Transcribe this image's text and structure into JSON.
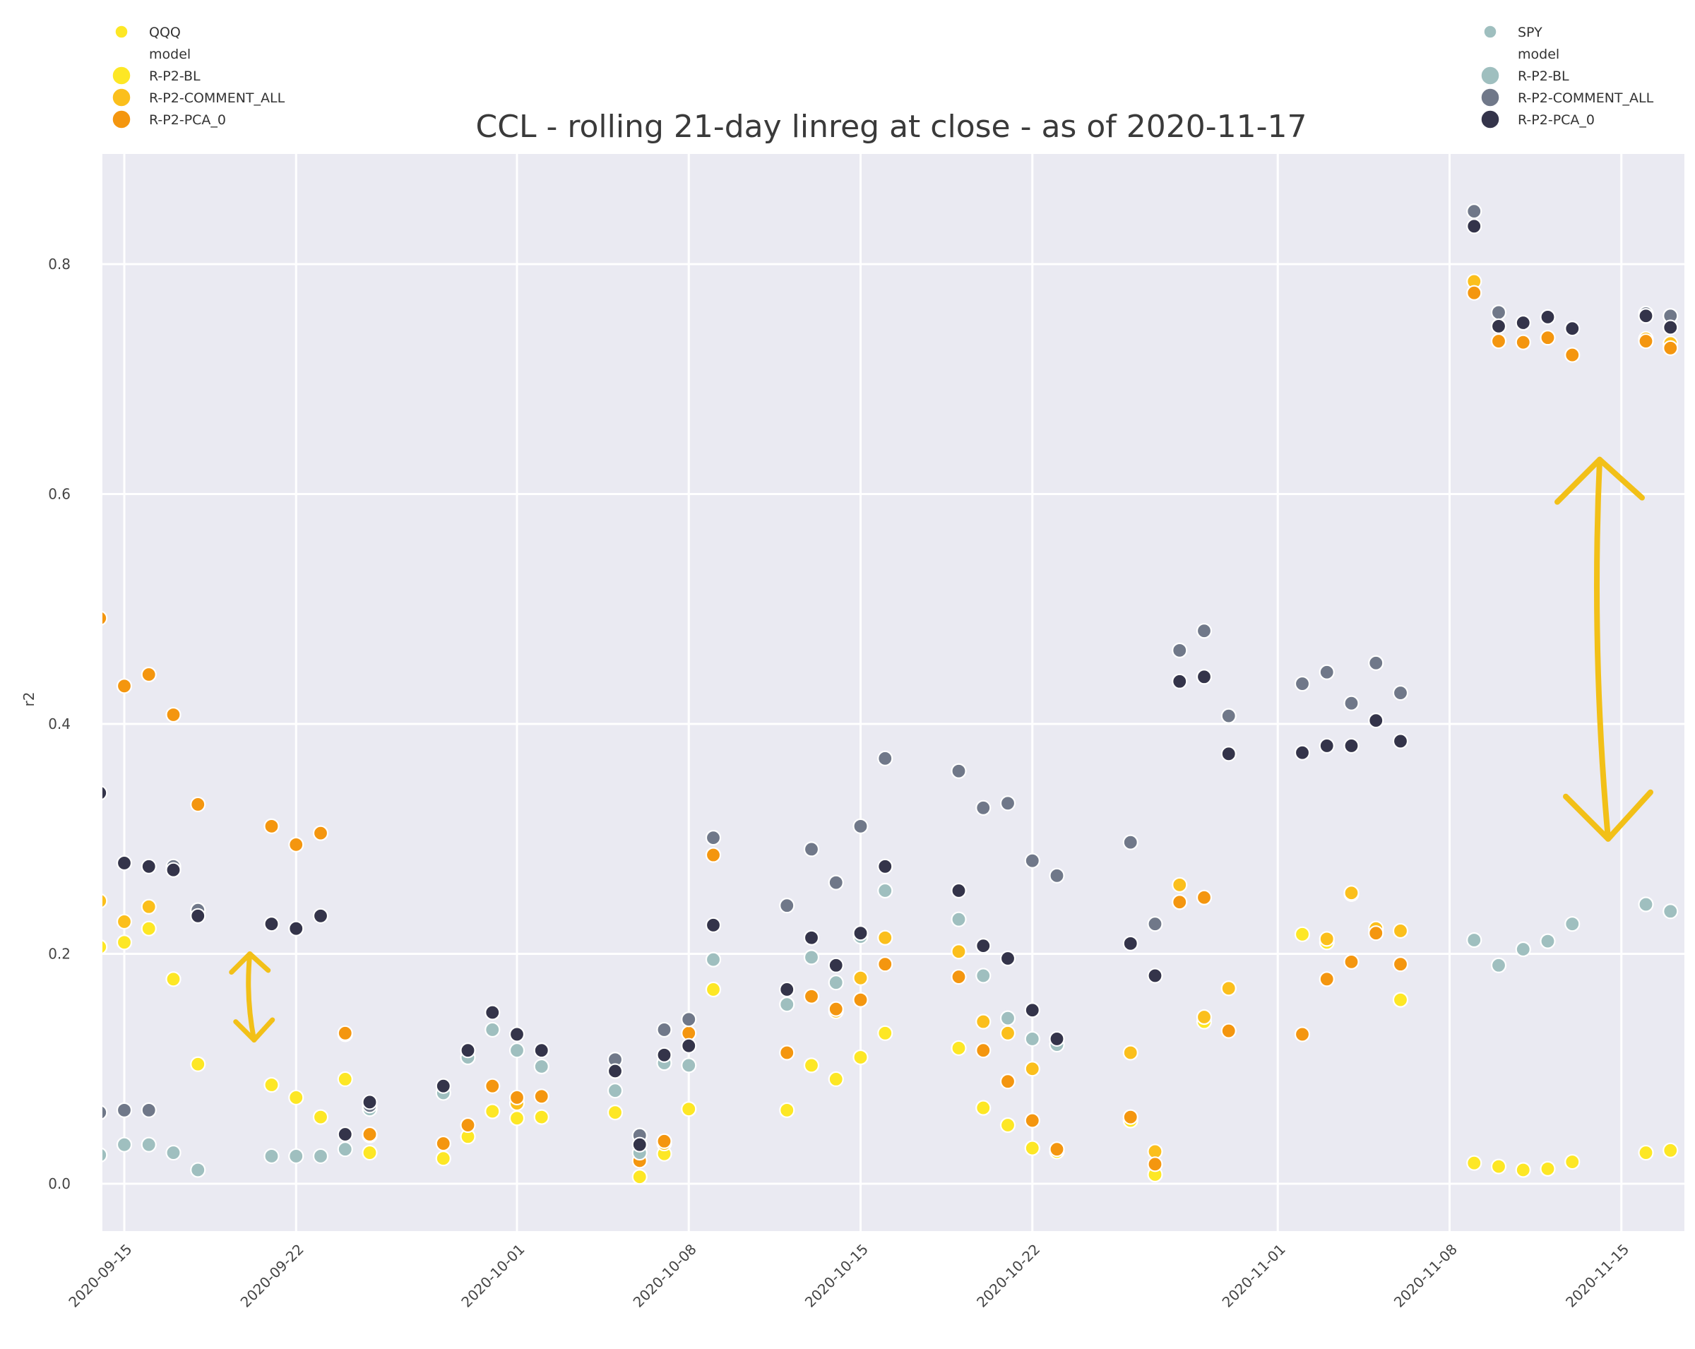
{
  "chart_data": {
    "type": "scatter",
    "title": "CCL - rolling 21-day linreg at close - as of 2020-11-17",
    "xlabel": "",
    "ylabel": "r2",
    "xlim": [
      "2020-09-14",
      "2020-11-17"
    ],
    "ylim": [
      -0.045,
      0.895
    ],
    "yticks": [
      0.0,
      0.2,
      0.4,
      0.6,
      0.8
    ],
    "ytick_labels": [
      "0.0",
      "0.2",
      "0.4",
      "0.6",
      "0.8"
    ],
    "xticks": [
      "2020-09-15",
      "2020-09-22",
      "2020-10-01",
      "2020-10-08",
      "2020-10-15",
      "2020-10-22",
      "2020-11-01",
      "2020-11-08",
      "2020-11-15"
    ],
    "grid": true,
    "legends": [
      {
        "position": "top-left",
        "title_entry": {
          "label": "QQQ",
          "color": "#fde725"
        },
        "subtitle": "model",
        "entries": [
          {
            "label": "R-P2-BL",
            "color": "#fde725"
          },
          {
            "label": "R-P2-COMMENT_ALL",
            "color": "#fbbf1c"
          },
          {
            "label": "R-P2-PCA_0",
            "color": "#f4960f"
          }
        ]
      },
      {
        "position": "top-right",
        "title_entry": {
          "label": "SPY",
          "color": "#9fbfbf"
        },
        "subtitle": "model",
        "entries": [
          {
            "label": "R-P2-BL",
            "color": "#9fbfbf"
          },
          {
            "label": "R-P2-COMMENT_ALL",
            "color": "#707889"
          },
          {
            "label": "R-P2-PCA_0",
            "color": "#34344a"
          }
        ]
      }
    ],
    "series": [
      {
        "ticker": "QQQ",
        "model": "R-P2-BL",
        "color": "#fde725",
        "x": [
          "2020-09-14",
          "2020-09-15",
          "2020-09-16",
          "2020-09-17",
          "2020-09-18",
          "2020-09-21",
          "2020-09-22",
          "2020-09-23",
          "2020-09-24",
          "2020-09-25",
          "2020-09-28",
          "2020-09-29",
          "2020-09-30",
          "2020-10-01",
          "2020-10-02",
          "2020-10-05",
          "2020-10-06",
          "2020-10-07",
          "2020-10-08",
          "2020-10-09",
          "2020-10-12",
          "2020-10-13",
          "2020-10-14",
          "2020-10-15",
          "2020-10-16",
          "2020-10-19",
          "2020-10-20",
          "2020-10-21",
          "2020-10-22",
          "2020-10-23",
          "2020-10-26",
          "2020-10-27",
          "2020-10-28",
          "2020-10-29",
          "2020-10-30",
          "2020-11-02",
          "2020-11-03",
          "2020-11-04",
          "2020-11-05",
          "2020-11-06",
          "2020-11-09",
          "2020-11-10",
          "2020-11-11",
          "2020-11-12",
          "2020-11-13",
          "2020-11-16",
          "2020-11-17"
        ],
        "values": [
          0.206,
          0.21,
          0.222,
          0.178,
          0.104,
          0.086,
          0.075,
          0.058,
          0.091,
          0.027,
          0.022,
          0.041,
          0.063,
          0.057,
          0.058,
          0.062,
          0.006,
          0.026,
          0.065,
          0.169,
          0.064,
          0.103,
          0.091,
          0.11,
          0.131,
          0.118,
          0.066,
          0.051,
          0.031,
          0.028,
          0.055,
          0.008,
          0.245,
          0.141,
          0.17,
          0.217,
          0.21,
          0.252,
          0.219,
          0.16,
          0.018,
          0.015,
          0.012,
          0.013,
          0.019,
          0.027,
          0.029
        ]
      },
      {
        "ticker": "QQQ",
        "model": "R-P2-COMMENT_ALL",
        "color": "#fbbf1c",
        "x": [
          "2020-09-14",
          "2020-09-15",
          "2020-09-16",
          "2020-09-24",
          "2020-09-25",
          "2020-10-01",
          "2020-10-07",
          "2020-10-14",
          "2020-10-15",
          "2020-10-16",
          "2020-10-19",
          "2020-10-20",
          "2020-10-21",
          "2020-10-22",
          "2020-10-26",
          "2020-10-27",
          "2020-10-28",
          "2020-10-29",
          "2020-10-30",
          "2020-11-03",
          "2020-11-04",
          "2020-11-05",
          "2020-11-06",
          "2020-11-09",
          "2020-11-10",
          "2020-11-16",
          "2020-11-17"
        ],
        "values": [
          0.246,
          0.228,
          0.241,
          0.13,
          0.042,
          0.07,
          0.035,
          0.15,
          0.179,
          0.214,
          0.202,
          0.141,
          0.131,
          0.1,
          0.114,
          0.028,
          0.26,
          0.145,
          0.17,
          0.213,
          0.253,
          0.222,
          0.22,
          0.785,
          0.733,
          0.735,
          0.731
        ]
      },
      {
        "ticker": "QQQ",
        "model": "R-P2-PCA_0",
        "color": "#f4960f",
        "x": [
          "2020-09-14",
          "2020-09-15",
          "2020-09-16",
          "2020-09-17",
          "2020-09-18",
          "2020-09-21",
          "2020-09-22",
          "2020-09-23",
          "2020-09-24",
          "2020-09-25",
          "2020-09-28",
          "2020-09-29",
          "2020-09-30",
          "2020-10-01",
          "2020-10-02",
          "2020-10-06",
          "2020-10-07",
          "2020-10-08",
          "2020-10-09",
          "2020-10-12",
          "2020-10-13",
          "2020-10-14",
          "2020-10-15",
          "2020-10-16",
          "2020-10-19",
          "2020-10-20",
          "2020-10-21",
          "2020-10-22",
          "2020-10-23",
          "2020-10-26",
          "2020-10-27",
          "2020-10-28",
          "2020-10-29",
          "2020-10-30",
          "2020-11-02",
          "2020-11-03",
          "2020-11-04",
          "2020-11-05",
          "2020-11-06",
          "2020-11-09",
          "2020-11-10",
          "2020-11-11",
          "2020-11-12",
          "2020-11-13",
          "2020-11-16",
          "2020-11-17"
        ],
        "values": [
          0.492,
          0.433,
          0.443,
          0.408,
          0.33,
          0.311,
          0.295,
          0.305,
          0.131,
          0.043,
          0.035,
          0.051,
          0.085,
          0.075,
          0.076,
          0.02,
          0.037,
          0.131,
          0.286,
          0.114,
          0.163,
          0.152,
          0.16,
          0.191,
          0.18,
          0.116,
          0.089,
          0.055,
          0.03,
          0.058,
          0.017,
          0.245,
          0.249,
          0.133,
          0.13,
          0.178,
          0.193,
          0.218,
          0.191,
          0.775,
          0.733,
          0.732,
          0.736,
          0.721,
          0.733,
          0.727
        ]
      },
      {
        "ticker": "SPY",
        "model": "R-P2-BL",
        "color": "#9fbfbf",
        "x": [
          "2020-09-14",
          "2020-09-15",
          "2020-09-16",
          "2020-09-17",
          "2020-09-18",
          "2020-09-21",
          "2020-09-22",
          "2020-09-23",
          "2020-09-24",
          "2020-09-25",
          "2020-09-28",
          "2020-09-29",
          "2020-09-30",
          "2020-10-01",
          "2020-10-02",
          "2020-10-05",
          "2020-10-06",
          "2020-10-07",
          "2020-10-08",
          "2020-10-09",
          "2020-10-12",
          "2020-10-13",
          "2020-10-14",
          "2020-10-15",
          "2020-10-16",
          "2020-10-19",
          "2020-10-20",
          "2020-10-21",
          "2020-10-22",
          "2020-10-23",
          "2020-11-09",
          "2020-11-10",
          "2020-11-11",
          "2020-11-12",
          "2020-11-13",
          "2020-11-16",
          "2020-11-17"
        ],
        "values": [
          0.025,
          0.034,
          0.034,
          0.027,
          0.012,
          0.024,
          0.024,
          0.024,
          0.03,
          0.065,
          0.079,
          0.11,
          0.134,
          0.116,
          0.102,
          0.081,
          0.027,
          0.105,
          0.103,
          0.195,
          0.156,
          0.197,
          0.175,
          0.215,
          0.255,
          0.23,
          0.181,
          0.144,
          0.126,
          0.121,
          0.212,
          0.19,
          0.204,
          0.211,
          0.226,
          0.243,
          0.237
        ]
      },
      {
        "ticker": "SPY",
        "model": "R-P2-COMMENT_ALL",
        "color": "#707889",
        "x": [
          "2020-09-14",
          "2020-09-15",
          "2020-09-16",
          "2020-09-17",
          "2020-09-18",
          "2020-09-25",
          "2020-10-05",
          "2020-10-06",
          "2020-10-07",
          "2020-10-08",
          "2020-10-09",
          "2020-10-12",
          "2020-10-13",
          "2020-10-14",
          "2020-10-15",
          "2020-10-16",
          "2020-10-19",
          "2020-10-20",
          "2020-10-21",
          "2020-10-22",
          "2020-10-23",
          "2020-10-26",
          "2020-10-27",
          "2020-10-28",
          "2020-10-29",
          "2020-10-30",
          "2020-11-02",
          "2020-11-03",
          "2020-11-04",
          "2020-11-05",
          "2020-11-06",
          "2020-11-09",
          "2020-11-10",
          "2020-11-16",
          "2020-11-17"
        ],
        "values": [
          0.062,
          0.064,
          0.064,
          0.276,
          0.238,
          0.068,
          0.108,
          0.042,
          0.134,
          0.143,
          0.301,
          0.242,
          0.291,
          0.262,
          0.311,
          0.37,
          0.359,
          0.327,
          0.331,
          0.281,
          0.268,
          0.297,
          0.226,
          0.464,
          0.481,
          0.407,
          0.435,
          0.445,
          0.418,
          0.453,
          0.427,
          0.846,
          0.758,
          0.757,
          0.755
        ]
      },
      {
        "ticker": "SPY",
        "model": "R-P2-PCA_0",
        "color": "#34344a",
        "x": [
          "2020-09-14",
          "2020-09-15",
          "2020-09-16",
          "2020-09-17",
          "2020-09-18",
          "2020-09-21",
          "2020-09-22",
          "2020-09-23",
          "2020-09-24",
          "2020-09-25",
          "2020-09-28",
          "2020-09-29",
          "2020-09-30",
          "2020-10-01",
          "2020-10-02",
          "2020-10-05",
          "2020-10-06",
          "2020-10-07",
          "2020-10-08",
          "2020-10-09",
          "2020-10-12",
          "2020-10-13",
          "2020-10-14",
          "2020-10-15",
          "2020-10-16",
          "2020-10-19",
          "2020-10-20",
          "2020-10-21",
          "2020-10-22",
          "2020-10-23",
          "2020-10-26",
          "2020-10-27",
          "2020-10-28",
          "2020-10-29",
          "2020-10-30",
          "2020-11-02",
          "2020-11-03",
          "2020-11-04",
          "2020-11-05",
          "2020-11-06",
          "2020-11-09",
          "2020-11-10",
          "2020-11-11",
          "2020-11-12",
          "2020-11-13",
          "2020-11-16",
          "2020-11-17"
        ],
        "values": [
          0.34,
          0.279,
          0.276,
          0.273,
          0.233,
          0.226,
          0.222,
          0.233,
          0.043,
          0.071,
          0.085,
          0.116,
          0.149,
          0.13,
          0.116,
          0.098,
          0.034,
          0.112,
          0.12,
          0.225,
          0.169,
          0.214,
          0.19,
          0.218,
          0.276,
          0.255,
          0.207,
          0.196,
          0.151,
          0.126,
          0.209,
          0.181,
          0.437,
          0.441,
          0.374,
          0.375,
          0.381,
          0.381,
          0.403,
          0.385,
          0.833,
          0.746,
          0.749,
          0.754,
          0.744,
          0.755,
          0.745
        ]
      }
    ],
    "annotations": [
      {
        "kind": "double-headed-arrow",
        "color": "#f2c018",
        "x_date": "2020-09-20",
        "y_range": [
          0.2,
          0.125
        ]
      },
      {
        "kind": "double-headed-arrow",
        "color": "#f2c018",
        "x_date": "2020-11-14",
        "y_range": [
          0.63,
          0.3
        ]
      }
    ]
  }
}
